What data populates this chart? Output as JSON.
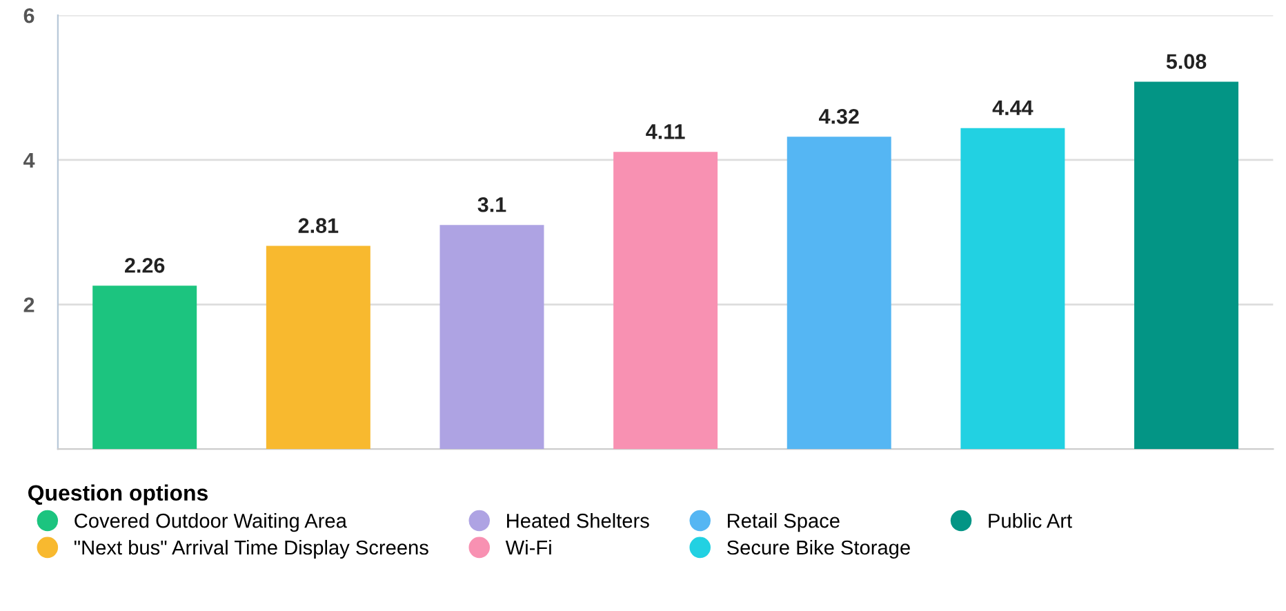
{
  "chart_data": {
    "type": "bar",
    "categories": [
      null,
      null,
      null,
      null,
      null,
      null,
      null
    ],
    "series": [
      {
        "name": "Covered Outdoor Waiting Area",
        "color": "#1cc47f",
        "values": [
          2.26,
          null,
          null,
          null,
          null,
          null,
          null
        ]
      },
      {
        "name": "\"Next bus\" Arrival Time Display Screens",
        "color": "#f8b92f",
        "values": [
          null,
          2.81,
          null,
          null,
          null,
          null,
          null
        ]
      },
      {
        "name": "Heated Shelters",
        "color": "#aea3e3",
        "values": [
          null,
          null,
          3.1,
          null,
          null,
          null,
          null
        ]
      },
      {
        "name": "Wi-Fi",
        "color": "#f891b2",
        "values": [
          null,
          null,
          null,
          4.11,
          null,
          null,
          null
        ]
      },
      {
        "name": "Retail Space",
        "color": "#55b6f3",
        "values": [
          null,
          null,
          null,
          null,
          4.32,
          null,
          null
        ]
      },
      {
        "name": "Secure Bike Storage",
        "color": "#22d1e2",
        "values": [
          null,
          null,
          null,
          null,
          null,
          4.44,
          null
        ]
      },
      {
        "name": "Public Art",
        "color": "#039585",
        "values": [
          null,
          null,
          null,
          null,
          null,
          null,
          5.08
        ]
      }
    ],
    "ylim": [
      0,
      6
    ],
    "yticks": [
      2,
      4,
      6
    ],
    "grid": "y",
    "data_labels": true,
    "legend": "bottom",
    "legend_title": "Question options"
  }
}
